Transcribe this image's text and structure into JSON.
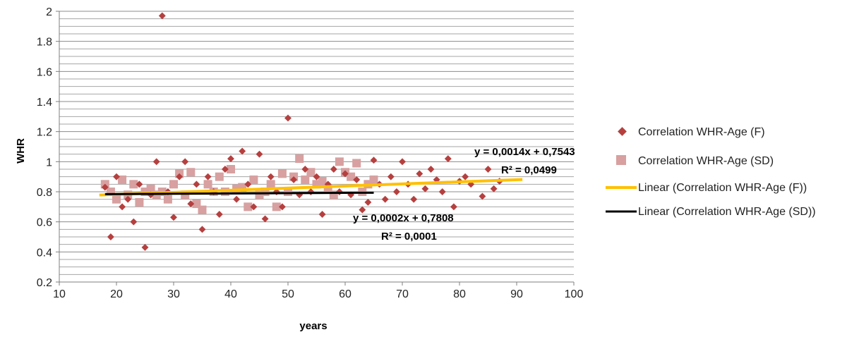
{
  "chart_data": {
    "type": "scatter",
    "title": "",
    "xlabel": "years",
    "ylabel": "WHR",
    "xlim": [
      10,
      100
    ],
    "ylim": [
      0.2,
      2
    ],
    "x_ticks": [
      "10",
      "20",
      "30",
      "40",
      "50",
      "60",
      "70",
      "80",
      "90",
      "100"
    ],
    "y_ticks": [
      "0.2",
      "0.4",
      "0.6",
      "0.8",
      "1",
      "1.2",
      "1.4",
      "1.6",
      "1.8",
      "2"
    ],
    "grid": true,
    "legend_position": "right",
    "series": [
      {
        "name": "Correlation WHR-Age (F)",
        "marker": "diamond",
        "color": "#b5403f",
        "points": [
          [
            18,
            0.83
          ],
          [
            19,
            0.5
          ],
          [
            20,
            0.9
          ],
          [
            21,
            0.7
          ],
          [
            22,
            0.75
          ],
          [
            23,
            0.6
          ],
          [
            24,
            0.85
          ],
          [
            25,
            0.43
          ],
          [
            26,
            0.78
          ],
          [
            27,
            1.0
          ],
          [
            28,
            1.97
          ],
          [
            29,
            0.8
          ],
          [
            30,
            0.63
          ],
          [
            31,
            0.9
          ],
          [
            32,
            1.0
          ],
          [
            33,
            0.72
          ],
          [
            34,
            0.85
          ],
          [
            35,
            0.55
          ],
          [
            36,
            0.9
          ],
          [
            37,
            0.8
          ],
          [
            38,
            0.65
          ],
          [
            39,
            0.95
          ],
          [
            40,
            1.02
          ],
          [
            41,
            0.75
          ],
          [
            42,
            1.07
          ],
          [
            43,
            0.85
          ],
          [
            44,
            0.7
          ],
          [
            45,
            1.05
          ],
          [
            46,
            0.62
          ],
          [
            47,
            0.9
          ],
          [
            48,
            0.8
          ],
          [
            49,
            0.7
          ],
          [
            50,
            1.29
          ],
          [
            51,
            0.88
          ],
          [
            52,
            0.78
          ],
          [
            53,
            0.95
          ],
          [
            54,
            0.8
          ],
          [
            55,
            0.9
          ],
          [
            56,
            0.65
          ],
          [
            57,
            0.85
          ],
          [
            58,
            0.95
          ],
          [
            59,
            0.8
          ],
          [
            60,
            0.92
          ],
          [
            61,
            0.78
          ],
          [
            62,
            0.88
          ],
          [
            63,
            0.68
          ],
          [
            64,
            0.73
          ],
          [
            65,
            1.01
          ],
          [
            66,
            0.85
          ],
          [
            67,
            0.75
          ],
          [
            68,
            0.9
          ],
          [
            69,
            0.8
          ],
          [
            70,
            1.0
          ],
          [
            71,
            0.85
          ],
          [
            72,
            0.75
          ],
          [
            73,
            0.92
          ],
          [
            74,
            0.82
          ],
          [
            75,
            0.95
          ],
          [
            76,
            0.88
          ],
          [
            77,
            0.8
          ],
          [
            78,
            1.02
          ],
          [
            79,
            0.7
          ],
          [
            80,
            0.87
          ],
          [
            81,
            0.9
          ],
          [
            82,
            0.85
          ],
          [
            84,
            0.77
          ],
          [
            85,
            0.95
          ],
          [
            86,
            0.82
          ],
          [
            87,
            0.87
          ]
        ]
      },
      {
        "name": "Correlation WHR-Age (SD)",
        "marker": "square",
        "color": "#d8a0a0",
        "points": [
          [
            18,
            0.85
          ],
          [
            19,
            0.8
          ],
          [
            20,
            0.75
          ],
          [
            21,
            0.88
          ],
          [
            22,
            0.78
          ],
          [
            23,
            0.85
          ],
          [
            24,
            0.73
          ],
          [
            25,
            0.8
          ],
          [
            26,
            0.82
          ],
          [
            27,
            0.78
          ],
          [
            28,
            0.8
          ],
          [
            29,
            0.75
          ],
          [
            30,
            0.85
          ],
          [
            31,
            0.92
          ],
          [
            32,
            0.78
          ],
          [
            33,
            0.93
          ],
          [
            34,
            0.72
          ],
          [
            35,
            0.68
          ],
          [
            36,
            0.85
          ],
          [
            37,
            0.8
          ],
          [
            38,
            0.9
          ],
          [
            39,
            0.8
          ],
          [
            40,
            0.95
          ],
          [
            41,
            0.82
          ],
          [
            42,
            0.83
          ],
          [
            43,
            0.7
          ],
          [
            44,
            0.88
          ],
          [
            45,
            0.78
          ],
          [
            46,
            0.8
          ],
          [
            47,
            0.85
          ],
          [
            48,
            0.7
          ],
          [
            49,
            0.92
          ],
          [
            50,
            0.8
          ],
          [
            51,
            0.9
          ],
          [
            52,
            1.02
          ],
          [
            53,
            0.88
          ],
          [
            54,
            0.93
          ],
          [
            55,
            0.85
          ],
          [
            56,
            0.87
          ],
          [
            57,
            0.82
          ],
          [
            58,
            0.78
          ],
          [
            59,
            1.0
          ],
          [
            60,
            0.93
          ],
          [
            61,
            0.9
          ],
          [
            62,
            0.99
          ],
          [
            63,
            0.8
          ],
          [
            64,
            0.85
          ],
          [
            65,
            0.88
          ]
        ]
      }
    ],
    "trendlines": [
      {
        "name": "Linear (Correlation WHR-Age (F))",
        "color": "#ffc000",
        "x_range": [
          17,
          91
        ],
        "equation": "y = 0,0014x + 0,7543",
        "r2": "R² = 0,0499",
        "slope": 0.0014,
        "intercept": 0.7543
      },
      {
        "name": "Linear (Correlation WHR-Age (SD))",
        "color": "#000000",
        "x_range": [
          18,
          65
        ],
        "equation": "y = 0,0002x + 0,7808",
        "r2": "R² = 0,0001",
        "slope": 0.0002,
        "intercept": 0.7808
      }
    ]
  }
}
